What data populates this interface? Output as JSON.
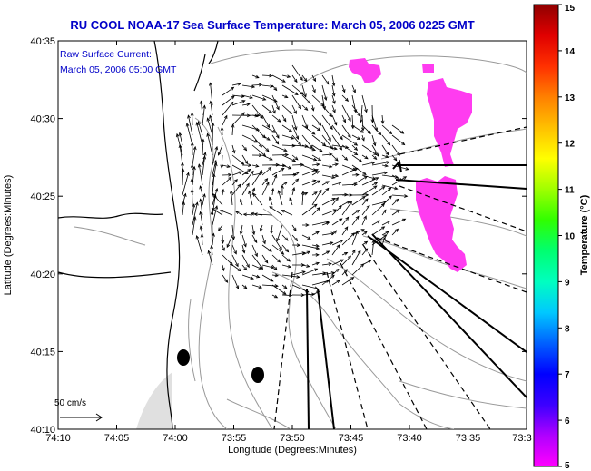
{
  "title": "RU COOL  NOAA-17  Sea Surface Temperature:  March 05, 2006 0225 GMT",
  "annotation": {
    "line1": "Raw Surface Current:",
    "line2": "March 05, 2006 05:00 GMT"
  },
  "scale_label": "50 cm/s",
  "xlabel": "Longitude (Degrees:Minutes)",
  "ylabel": "Latitude (Degrees:Minutes)",
  "x_ticks": [
    "74:10",
    "74:05",
    "74:00",
    "73:55",
    "73:50",
    "73:45",
    "73:40",
    "73:35",
    "73:3"
  ],
  "y_ticks": [
    "40:35",
    "40:30",
    "40:25",
    "40:20",
    "40:15",
    "40:10"
  ],
  "colorbar": {
    "label": "Temperature (°C)",
    "min": 5,
    "max": 15,
    "ticks": [
      "15",
      "14",
      "13",
      "12",
      "11",
      "10",
      "9",
      "8",
      "7",
      "6",
      "5"
    ],
    "colors": [
      "#ff00ff",
      "#b000ff",
      "#3c00ff",
      "#0000ff",
      "#0060ff",
      "#00c8ff",
      "#00ffc0",
      "#00ff70",
      "#30ff00",
      "#a0ff00",
      "#ffff00",
      "#ffc000",
      "#ff8000",
      "#ff3000",
      "#e00000",
      "#900000"
    ]
  },
  "colors": {
    "title": "#0000c8",
    "sst_patch": "#ff3cf0",
    "land": "#000000"
  }
}
